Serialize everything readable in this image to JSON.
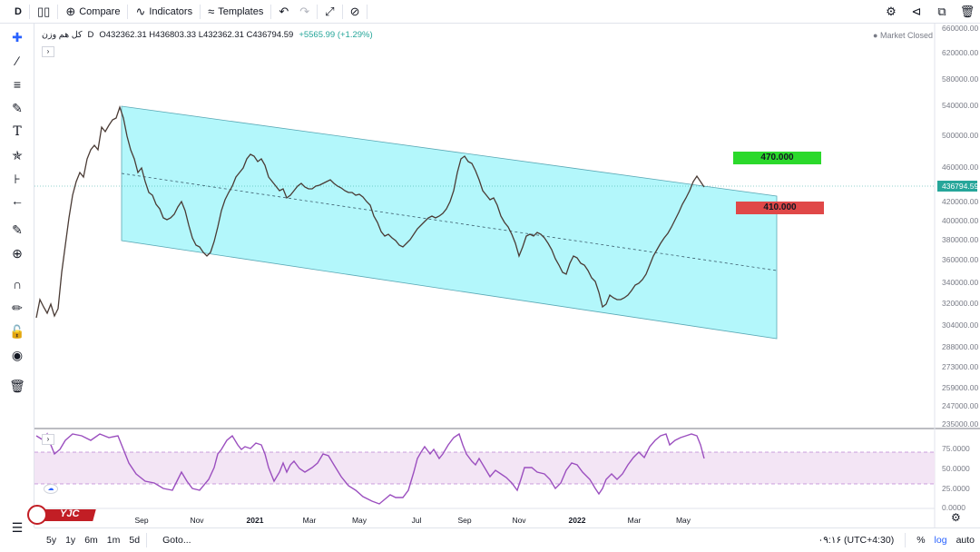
{
  "topbar": {
    "interval": "D",
    "compare": "Compare",
    "indicators": "Indicators",
    "templates": "Templates"
  },
  "legend": {
    "symbol": "کل هم وزن",
    "interval": "D",
    "ohlc": "O432362.31 H436803.33 L432362.31 C436794.59",
    "change": "+5565.99 (+1.29%)",
    "market_status": "Market Closed"
  },
  "price_axis": {
    "ticks": [
      "660000.00",
      "620000.00",
      "580000.00",
      "540000.00",
      "500000.00",
      "460000.00",
      "420000.00",
      "400000.00",
      "380000.00",
      "360000.00",
      "340000.00",
      "320000.00",
      "304000.00",
      "288000.00",
      "273000.00",
      "259000.00",
      "247000.00",
      "235000.00"
    ],
    "last_price": "436794.59"
  },
  "rsi_axis": {
    "ticks": [
      "75.0000",
      "50.0000",
      "25.0000",
      "0.0000"
    ]
  },
  "time_axis": {
    "labels": [
      "Sep",
      "Nov",
      "2021",
      "Mar",
      "May",
      "Jul",
      "Sep",
      "Nov",
      "2022",
      "Mar",
      "May"
    ]
  },
  "annotations": {
    "target_high": "470.000",
    "target_low": "410.000"
  },
  "bottombar": {
    "ranges": [
      "5y",
      "1y",
      "6m",
      "1m",
      "5d"
    ],
    "goto": "Goto...",
    "clock": "۰۹:۱۶ (UTC+4:30)",
    "percent": "%",
    "log": "log",
    "auto": "auto"
  },
  "logo": {
    "text": "YJC"
  },
  "colors": {
    "channel_fill": "#b3f7fb",
    "rsi_line": "#9b4fbf",
    "rsi_band": "#f3e5f5",
    "up_candle": "#26a69a",
    "down_candle": "#ef5350",
    "target_green": "#2bd92b",
    "target_red": "#e04848"
  }
}
